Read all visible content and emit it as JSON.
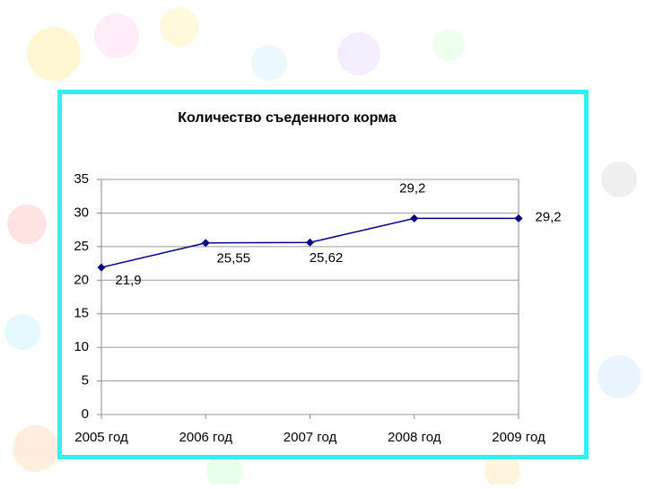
{
  "chart_data": {
    "type": "line",
    "title": "Количество съеденного корма",
    "categories": [
      "2005 год",
      "2006 год",
      "2007 год",
      "2008 год",
      "2009 год"
    ],
    "values": [
      21.9,
      25.55,
      25.62,
      29.2,
      29.2
    ],
    "value_labels": [
      "21,9",
      "25,55",
      "25,62",
      "29,2",
      "29,2"
    ],
    "color": "#000080",
    "ylim": [
      0,
      35
    ],
    "yticks": [
      0,
      5,
      10,
      15,
      20,
      25,
      30,
      35
    ],
    "grid": true
  }
}
